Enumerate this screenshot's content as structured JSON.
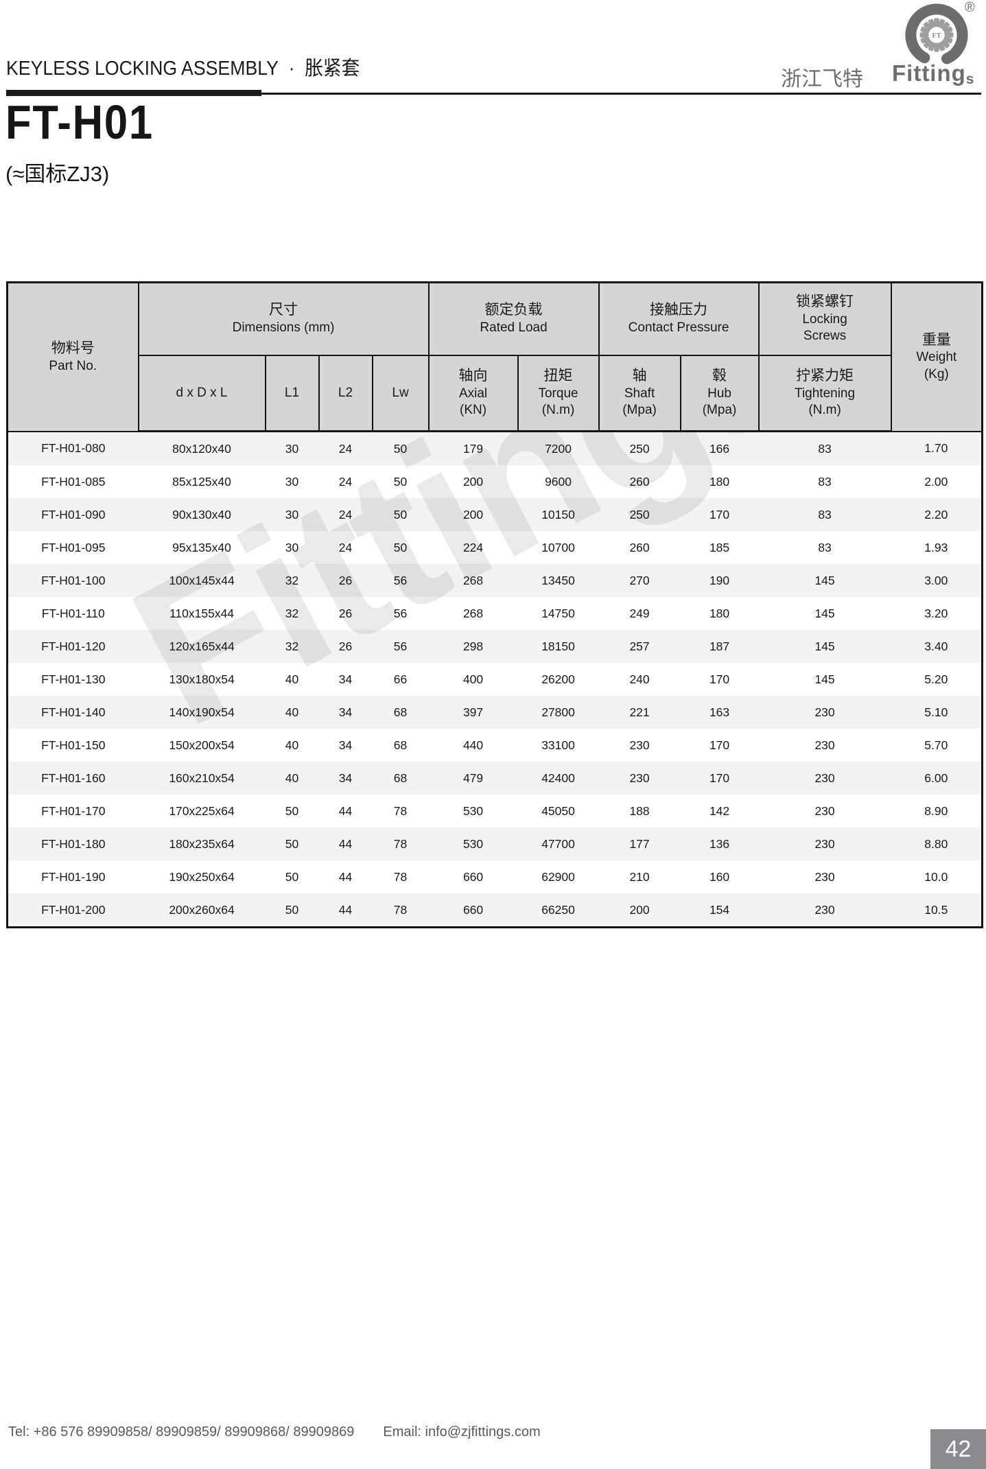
{
  "page": {
    "heading_en": "KEYLESS LOCKING ASSEMBLY",
    "heading_sep": "·",
    "heading_zh": "胀紧套",
    "brand_zh": "浙江飞特",
    "brand_en": "Fitting",
    "brand_en_sub": "s",
    "brand_reg": "®",
    "logo_monogram": "FT",
    "title": "FT-H01",
    "subtitle": "(≈国标ZJ3)",
    "watermark": "Fittings",
    "footer_tel": "Tel: +86 576 89909858/ 89909859/ 89909868/ 89909869",
    "footer_email": "Email: info@zjfittings.com",
    "page_number": "42"
  },
  "colors": {
    "brand_gray": "#6e6e6e",
    "table_header_bg": "#d5d5d5",
    "row_alt_gray": "#f0f0f0",
    "rule_black": "#1a1a1a",
    "page_badge_bg": "#8b8b8f"
  },
  "table": {
    "header": {
      "part_no": {
        "zh": "物料号",
        "en": "Part No."
      },
      "dimensions": {
        "zh": "尺寸",
        "en": "Dimensions (mm)"
      },
      "dim_cols": [
        "d x D x L",
        "L1",
        "L2",
        "Lw"
      ],
      "rated_load": {
        "zh": "额定负载",
        "en": "Rated Load"
      },
      "axial": {
        "zh": "轴向",
        "en": "Axial",
        "unit": "(KN)"
      },
      "torque": {
        "zh": "扭矩",
        "en": "Torque",
        "unit": "(N.m)"
      },
      "contact_pressure": {
        "zh": "接触压力",
        "en": "Contact Pressure"
      },
      "shaft": {
        "zh": "轴",
        "en": "Shaft",
        "unit": "(Mpa)"
      },
      "hub": {
        "zh": "毂",
        "en": "Hub",
        "unit": "(Mpa)"
      },
      "locking_screws": {
        "zh": "锁紧螺钉",
        "en1": "Locking",
        "en2": "Screws"
      },
      "tightening": {
        "zh": "拧紧力矩",
        "en": "Tightening",
        "unit": "(N.m)"
      },
      "weight": {
        "zh": "重量",
        "en": "Weight",
        "unit": "(Kg)"
      }
    },
    "rows": [
      [
        "FT-H01-080",
        "80x120x40",
        "30",
        "24",
        "50",
        "179",
        "7200",
        "250",
        "166",
        "83",
        "1.70"
      ],
      [
        "FT-H01-085",
        "85x125x40",
        "30",
        "24",
        "50",
        "200",
        "9600",
        "260",
        "180",
        "83",
        "2.00"
      ],
      [
        "FT-H01-090",
        "90x130x40",
        "30",
        "24",
        "50",
        "200",
        "10150",
        "250",
        "170",
        "83",
        "2.20"
      ],
      [
        "FT-H01-095",
        "95x135x40",
        "30",
        "24",
        "50",
        "224",
        "10700",
        "260",
        "185",
        "83",
        "1.93"
      ],
      [
        "FT-H01-100",
        "100x145x44",
        "32",
        "26",
        "56",
        "268",
        "13450",
        "270",
        "190",
        "145",
        "3.00"
      ],
      [
        "FT-H01-110",
        "110x155x44",
        "32",
        "26",
        "56",
        "268",
        "14750",
        "249",
        "180",
        "145",
        "3.20"
      ],
      [
        "FT-H01-120",
        "120x165x44",
        "32",
        "26",
        "56",
        "298",
        "18150",
        "257",
        "187",
        "145",
        "3.40"
      ],
      [
        "FT-H01-130",
        "130x180x54",
        "40",
        "34",
        "66",
        "400",
        "26200",
        "240",
        "170",
        "145",
        "5.20"
      ],
      [
        "FT-H01-140",
        "140x190x54",
        "40",
        "34",
        "68",
        "397",
        "27800",
        "221",
        "163",
        "230",
        "5.10"
      ],
      [
        "FT-H01-150",
        "150x200x54",
        "40",
        "34",
        "68",
        "440",
        "33100",
        "230",
        "170",
        "230",
        "5.70"
      ],
      [
        "FT-H01-160",
        "160x210x54",
        "40",
        "34",
        "68",
        "479",
        "42400",
        "230",
        "170",
        "230",
        "6.00"
      ],
      [
        "FT-H01-170",
        "170x225x64",
        "50",
        "44",
        "78",
        "530",
        "45050",
        "188",
        "142",
        "230",
        "8.90"
      ],
      [
        "FT-H01-180",
        "180x235x64",
        "50",
        "44",
        "78",
        "530",
        "47700",
        "177",
        "136",
        "230",
        "8.80"
      ],
      [
        "FT-H01-190",
        "190x250x64",
        "50",
        "44",
        "78",
        "660",
        "62900",
        "210",
        "160",
        "230",
        "10.0"
      ],
      [
        "FT-H01-200",
        "200x260x64",
        "50",
        "44",
        "78",
        "660",
        "66250",
        "200",
        "154",
        "230",
        "10.5"
      ]
    ]
  }
}
